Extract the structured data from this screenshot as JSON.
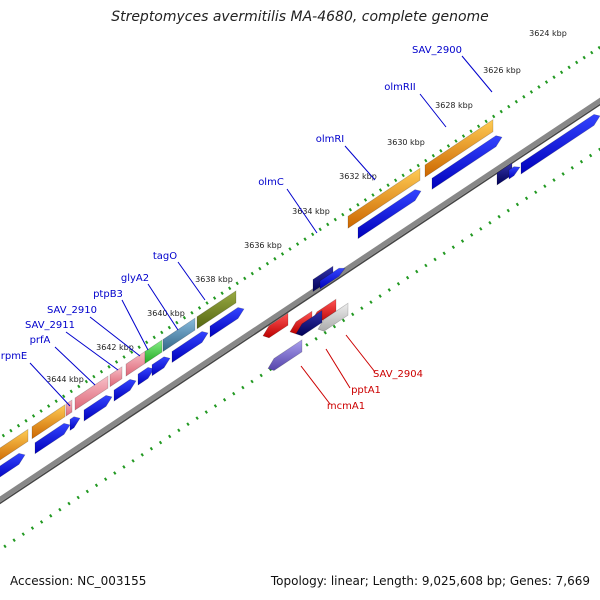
{
  "title": "Streptomyces avermitilis MA-4680, complete genome",
  "accession": "Accession: NC_003155",
  "topology": "Topology: linear; Length: 9,025,608 bp; Genes: 7,669",
  "ticks": [
    "3624 kbp",
    "3626 kbp",
    "3628 kbp",
    "3630 kbp",
    "3632 kbp",
    "3634 kbp",
    "3636 kbp",
    "3638 kbp",
    "3640 kbp",
    "3642 kbp",
    "3644 kbp"
  ],
  "upper_labels": [
    "SAV_2900",
    "olmRII",
    "olmRI",
    "olmC",
    "tagO",
    "glyA2",
    "ptpB3",
    "SAV_2910",
    "SAV_2911",
    "prfA",
    "rpmE"
  ],
  "lower_labels": [
    "SAV_2904",
    "pptA1",
    "mcmA1"
  ],
  "colors": {
    "cds": "#0000ee",
    "orange": "#ee8800",
    "navy": "#000077",
    "pink": "#ee8899",
    "green": "#33cc33",
    "steel": "#4488aa",
    "olive": "#667722",
    "red": "#ee0000",
    "gray": "#bbbbbb",
    "purple": "#7766cc",
    "upper_label": "#0000cc",
    "lower_label": "#cc0000",
    "backbone": "#777777",
    "tick": "#229922"
  }
}
